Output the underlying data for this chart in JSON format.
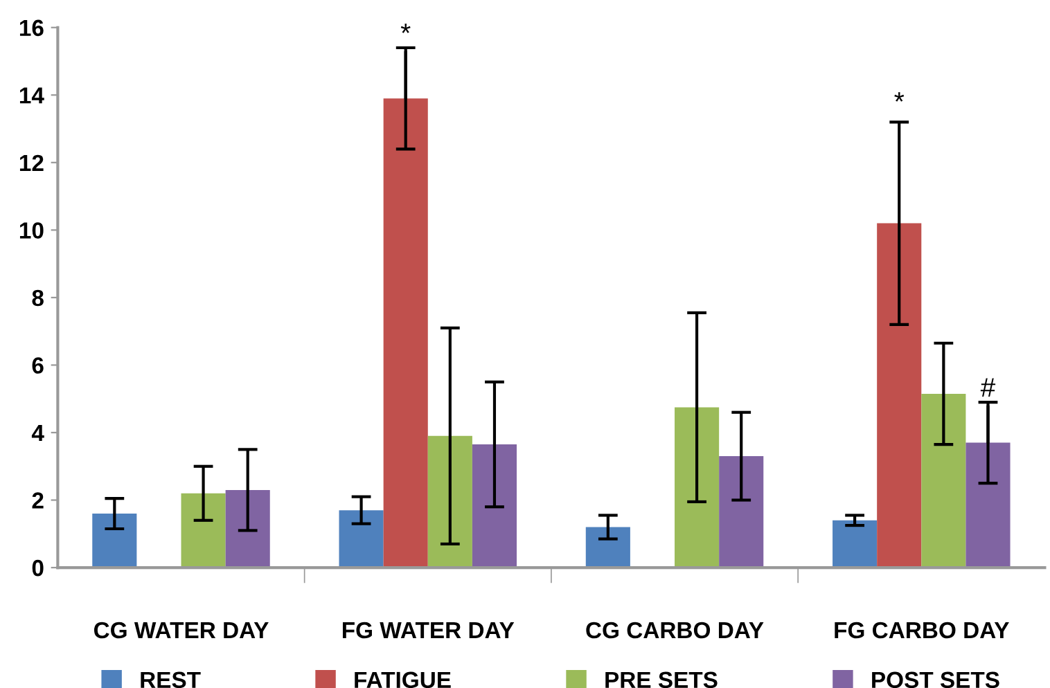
{
  "chart_data": {
    "type": "bar",
    "categories": [
      "CG WATER DAY",
      "FG WATER DAY",
      "CG CARBO DAY",
      "FG CARBO DAY"
    ],
    "series": [
      {
        "name": "REST",
        "color": "#4f81bd",
        "values": [
          1.6,
          1.7,
          1.2,
          1.4
        ],
        "errors": [
          0.45,
          0.4,
          0.35,
          0.15
        ]
      },
      {
        "name": "FATIGUE",
        "color": "#c0504d",
        "values": [
          null,
          13.9,
          null,
          10.2
        ],
        "errors": [
          null,
          1.5,
          null,
          3.0
        ]
      },
      {
        "name": "PRE SETS",
        "color": "#9bbb59",
        "values": [
          2.2,
          3.9,
          4.75,
          5.15
        ],
        "errors": [
          0.8,
          3.2,
          2.8,
          1.5
        ]
      },
      {
        "name": "POST SETS",
        "color": "#8064a2",
        "values": [
          2.3,
          3.65,
          3.3,
          3.7
        ],
        "errors": [
          1.2,
          1.85,
          1.3,
          1.2
        ]
      }
    ],
    "annotations": [
      {
        "text": "*",
        "x": "FG WATER DAY",
        "y": 13.9
      },
      "*",
      {
        "text": "#",
        "x": "FG CARBO DAY",
        "y": 3.7
      }
    ],
    "ylim": [
      0,
      16
    ],
    "yticks": [
      0,
      2,
      4,
      6,
      8,
      10,
      12,
      14,
      16
    ],
    "grid": false,
    "legend": "bottom"
  }
}
